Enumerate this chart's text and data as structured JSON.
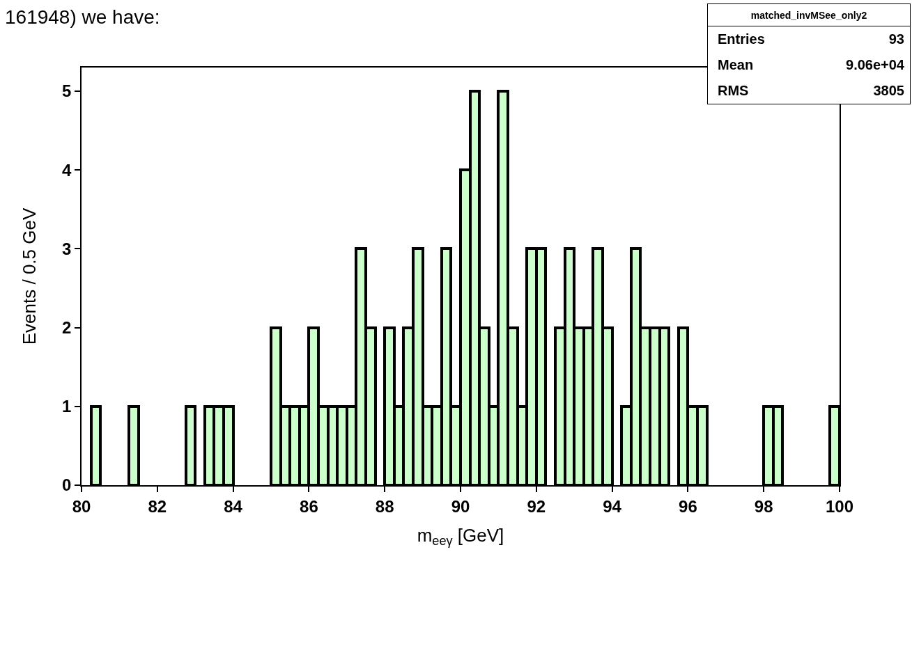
{
  "chart_data": {
    "type": "histogram",
    "xlabel": "m$_{eeγ}$ [GeV]",
    "ylabel": "Events / 0.5 GeV",
    "annotations": [
      "161948) we have:",
      "matched_invMSee_only2",
      "Entries",
      "93",
      "Mean",
      "9.06e+04",
      "RMS",
      "3805"
    ],
    "bins": [
      80,
      80.25,
      80.5,
      80.75,
      81,
      81.25,
      81.5,
      81.75,
      82,
      82.25,
      82.5,
      82.75,
      83,
      83.25,
      83.5,
      83.75,
      84,
      84.25,
      84.5,
      84.75,
      85,
      85.25,
      85.5,
      85.75,
      86,
      86.25,
      86.5,
      86.75,
      87,
      87.25,
      87.5,
      87.75,
      88,
      88.25,
      88.5,
      88.75,
      89,
      89.25,
      89.5,
      89.75,
      90,
      90.25,
      90.5,
      90.75,
      91,
      91.25,
      91.5,
      91.75,
      92,
      92.25,
      92.5,
      92.75,
      93,
      93.25,
      93.5,
      93.75,
      94,
      94.25,
      94.5,
      94.75,
      95,
      95.25,
      95.5,
      95.75,
      96,
      96.25,
      96.5,
      96.75,
      97,
      97.25,
      97.5,
      97.75,
      98,
      98.25,
      98.5,
      98.75,
      99,
      99.25,
      99.5,
      99.75,
      100
    ],
    "values": [
      0,
      1,
      0,
      0,
      0,
      1,
      0,
      0,
      0,
      0,
      0,
      1,
      0,
      1,
      1,
      1,
      0,
      0,
      0,
      0,
      2,
      1,
      1,
      1,
      2,
      1,
      1,
      1,
      1,
      3,
      2,
      0,
      2,
      1,
      2,
      3,
      1,
      1,
      3,
      1,
      4,
      5,
      2,
      1,
      5,
      2,
      1,
      3,
      3,
      0,
      2,
      3,
      2,
      2,
      3,
      2,
      0,
      1,
      3,
      2,
      2,
      2,
      0,
      2,
      1,
      1,
      0,
      0,
      0,
      0,
      0,
      0,
      1,
      1,
      0,
      0,
      0,
      0,
      0,
      1
    ],
    "color": "#ccffcc",
    "xlim": [
      80,
      100
    ],
    "xticks": [
      80,
      82,
      84,
      86,
      88,
      90,
      92,
      94,
      96,
      98,
      100
    ],
    "ylim": [
      0,
      5.3
    ],
    "yticks": [
      0,
      1,
      2,
      3,
      4,
      5
    ],
    "grid": false,
    "legend": false
  }
}
